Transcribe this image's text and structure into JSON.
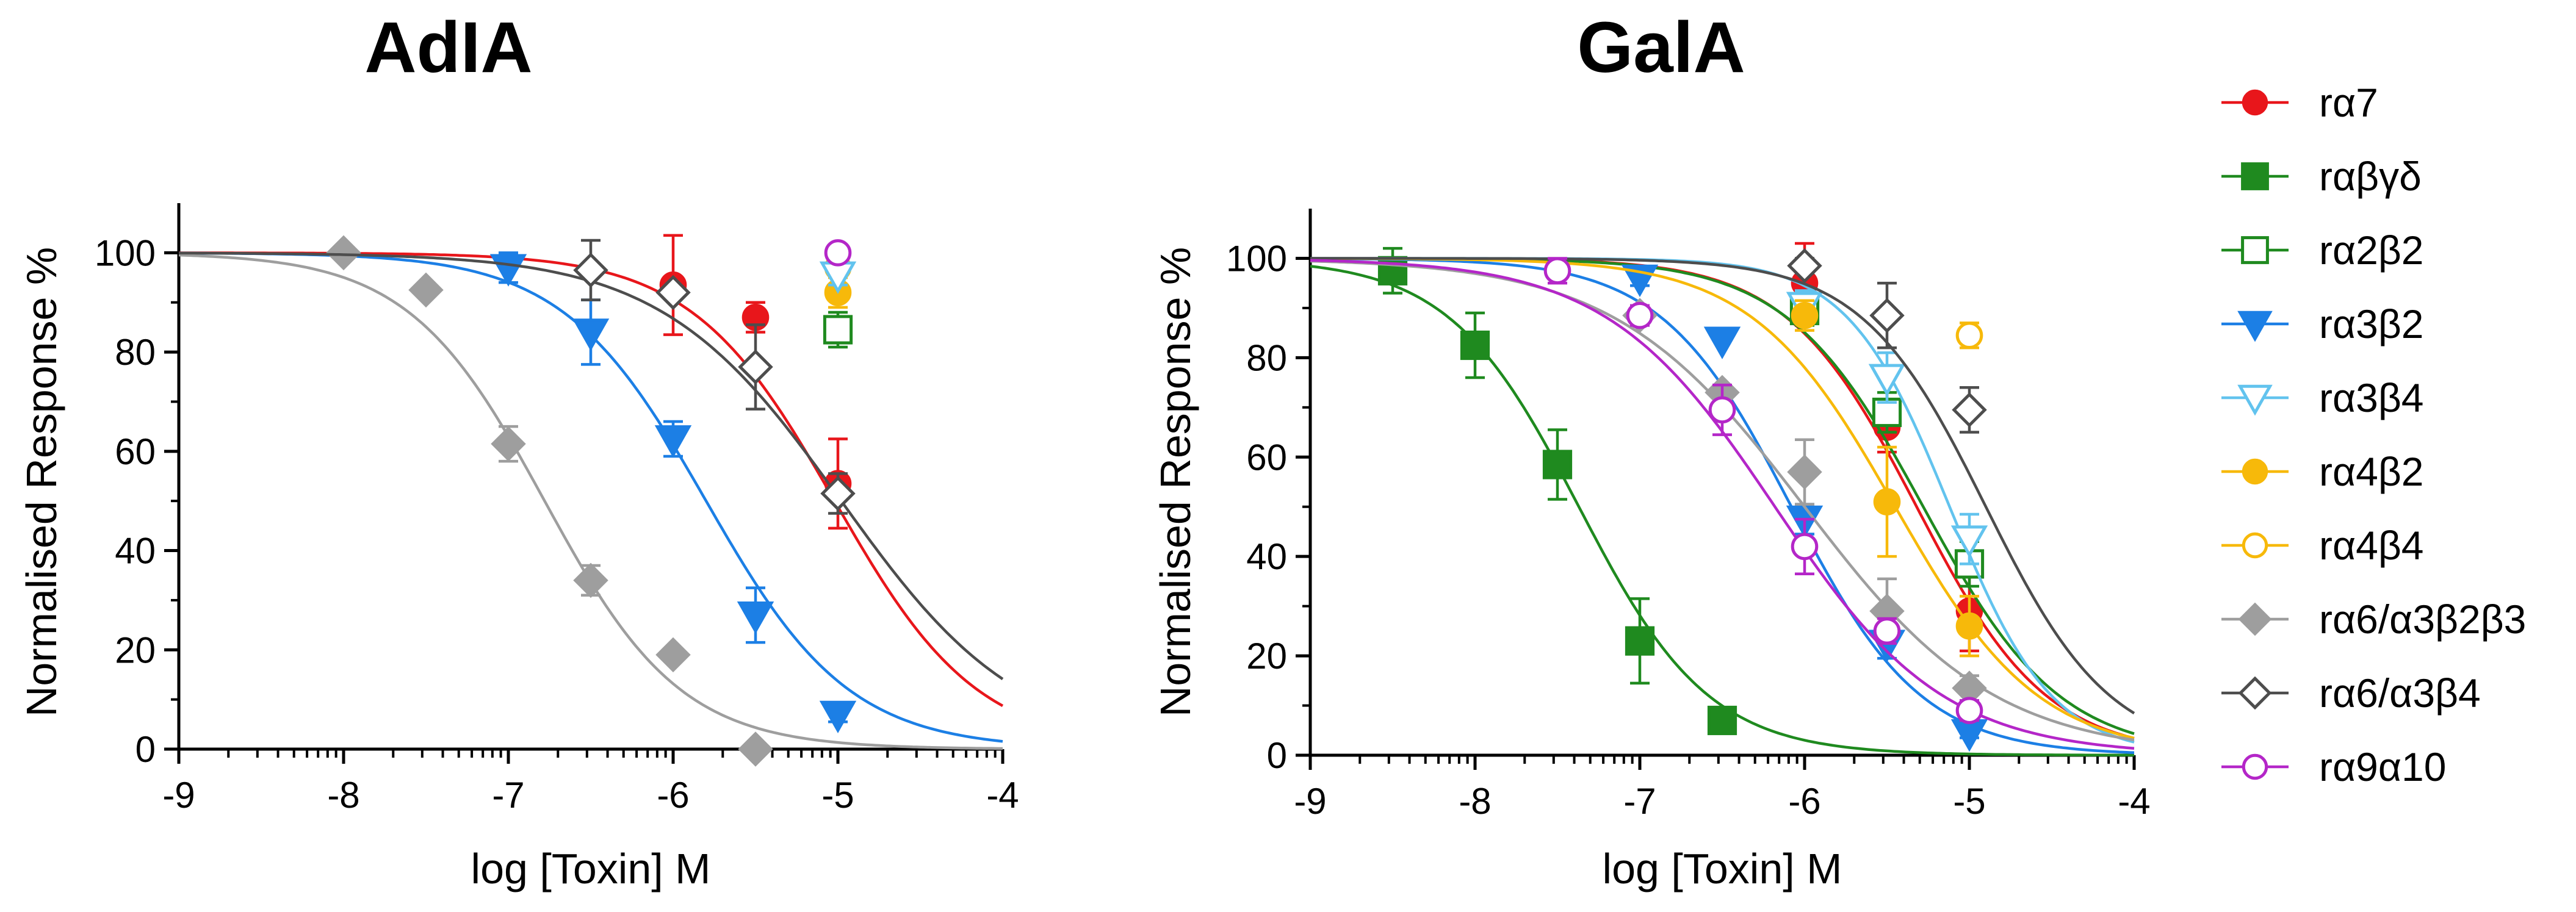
{
  "chart_data": [
    {
      "type": "line",
      "title": "AdIA",
      "xlabel": "log [Toxin] M",
      "ylabel": "Normalised Response %",
      "xlim": [
        -9,
        -4
      ],
      "ylim": [
        0,
        110
      ],
      "xticks": [
        "-9",
        "-8",
        "-7",
        "-6",
        "-5",
        "-4"
      ],
      "yticks": [
        "0",
        "20",
        "40",
        "60",
        "80",
        "100"
      ],
      "grid": false,
      "series": [
        {
          "name": "rα7",
          "color": "#e8161b",
          "marker": "circle",
          "filled": true,
          "x": [
            -6,
            -5.5,
            -5
          ],
          "y": [
            93.5,
            87,
            53.5
          ],
          "err": [
            10,
            3,
            9
          ],
          "curve": {
            "ic50": -5.02,
            "hill": 1.0
          }
        },
        {
          "name": "rα3β2",
          "color": "#1c7fe5",
          "marker": "triangle-down",
          "filled": true,
          "x": [
            -7,
            -6.5,
            -6,
            -5.5,
            -5
          ],
          "y": [
            97,
            84,
            62.5,
            27,
            7
          ],
          "err": [
            3,
            6.5,
            3.5,
            5.5,
            1.5
          ],
          "curve": {
            "ic50": -5.8,
            "hill": 1.0
          }
        },
        {
          "name": "rα6/α3β2β3",
          "color": "#9e9e9e",
          "marker": "diamond",
          "filled": true,
          "x": [
            -8,
            -7.5,
            -7,
            -6.5,
            -6,
            -5.5
          ],
          "y": [
            100,
            92.5,
            61.5,
            34,
            19,
            0
          ],
          "err": [
            0,
            0,
            3.5,
            3,
            0,
            0
          ],
          "curve": {
            "ic50": -6.78,
            "hill": 1.05
          }
        },
        {
          "name": "rα6/α3β4",
          "color": "#4d4d4d",
          "marker": "diamond",
          "filled": false,
          "x": [
            -6.5,
            -6,
            -5.5,
            -5
          ],
          "y": [
            96.5,
            92,
            77,
            51.5
          ],
          "err": [
            6,
            0,
            8.5,
            4
          ],
          "curve": {
            "ic50": -4.98,
            "hill": 0.8
          }
        },
        {
          "name": "rα2β2",
          "color": "#1f8a1f",
          "marker": "square",
          "filled": false,
          "x": [
            -5
          ],
          "y": [
            84.5
          ],
          "err": [
            3.5
          ]
        },
        {
          "name": "rα4β2",
          "color": "#f7b90a",
          "marker": "circle",
          "filled": true,
          "x": [
            -5
          ],
          "y": [
            92
          ],
          "err": [
            3
          ]
        },
        {
          "name": "rα4β4",
          "color": "#f7b90a",
          "marker": "circle",
          "filled": false,
          "x": [
            -5
          ],
          "y": [
            97
          ],
          "err": [
            0
          ]
        },
        {
          "name": "rα3β4",
          "color": "#62c3ee",
          "marker": "triangle-down",
          "filled": false,
          "x": [
            -5
          ],
          "y": [
            95.5
          ],
          "err": [
            2
          ]
        },
        {
          "name": "rα9α10",
          "color": "#b426c8",
          "marker": "circle",
          "filled": false,
          "x": [
            -5
          ],
          "y": [
            100
          ],
          "err": [
            0
          ]
        }
      ]
    },
    {
      "type": "line",
      "title": "GalA",
      "xlabel": "log [Toxin] M",
      "ylabel": "Normalised Response %",
      "xlim": [
        -9,
        -4
      ],
      "ylim": [
        0,
        110
      ],
      "xticks": [
        "-9",
        "-8",
        "-7",
        "-6",
        "-5",
        "-4"
      ],
      "yticks": [
        "0",
        "20",
        "40",
        "60",
        "80",
        "100"
      ],
      "grid": false,
      "series": [
        {
          "name": "rα7",
          "color": "#e8161b",
          "marker": "circle",
          "filled": true,
          "x": [
            -6,
            -5.5,
            -5
          ],
          "y": [
            95,
            66,
            29
          ],
          "err": [
            8,
            5,
            8
          ],
          "curve": {
            "ic50": -5.32,
            "hill": 1.1
          }
        },
        {
          "name": "rαβγδ",
          "color": "#1f8a1f",
          "marker": "square",
          "filled": true,
          "x": [
            -8.5,
            -8,
            -7.5,
            -7,
            -6.5
          ],
          "y": [
            97.5,
            82.5,
            58.5,
            23,
            7
          ],
          "err": [
            4.5,
            6.5,
            7,
            8.5,
            2.5
          ],
          "curve": {
            "ic50": -7.37,
            "hill": 1.1
          }
        },
        {
          "name": "rα2β2",
          "color": "#1f8a1f",
          "marker": "square",
          "filled": false,
          "x": [
            -6,
            -5.5,
            -5
          ],
          "y": [
            89.5,
            69,
            38.5
          ],
          "err": [
            3,
            4,
            4.5
          ],
          "curve": {
            "ic50": -5.28,
            "hill": 1.05
          }
        },
        {
          "name": "rα3β2",
          "color": "#1c7fe5",
          "marker": "triangle-down",
          "filled": true,
          "x": [
            -7,
            -6.5,
            -6,
            -5.5,
            -5
          ],
          "y": [
            96,
            83.5,
            47.5,
            22.5,
            4.5
          ],
          "err": [
            1.5,
            0,
            3,
            3,
            1
          ],
          "curve": {
            "ic50": -6.08,
            "hill": 1.1
          }
        },
        {
          "name": "rα3β4",
          "color": "#62c3ee",
          "marker": "triangle-down",
          "filled": false,
          "x": [
            -6,
            -5.5,
            -5
          ],
          "y": [
            90.5,
            76,
            43.5
          ],
          "err": [
            3,
            5,
            5
          ],
          "curve": {
            "ic50": -5.12,
            "hill": 1.4
          }
        },
        {
          "name": "rα4β2",
          "color": "#f7b90a",
          "marker": "circle",
          "filled": true,
          "x": [
            -6,
            -5.5,
            -5
          ],
          "y": [
            88.5,
            51,
            26
          ],
          "err": [
            3,
            11,
            6
          ],
          "curve": {
            "ic50": -5.45,
            "hill": 1.0
          }
        },
        {
          "name": "rα4β4",
          "color": "#f7b90a",
          "marker": "circle",
          "filled": false,
          "x": [
            -5
          ],
          "y": [
            84.5
          ],
          "err": [
            2.5
          ]
        },
        {
          "name": "rα6/α3β2β3",
          "color": "#9e9e9e",
          "marker": "diamond",
          "filled": true,
          "x": [
            -7,
            -6.5,
            -6,
            -5.5,
            -5
          ],
          "y": [
            88.5,
            73,
            57,
            29,
            13.5
          ],
          "err": [
            2,
            0,
            6.5,
            6.5,
            2.5
          ],
          "curve": {
            "ic50": -6.0,
            "hill": 0.75
          }
        },
        {
          "name": "rα6/α3β4",
          "color": "#4d4d4d",
          "marker": "diamond",
          "filled": false,
          "x": [
            -6,
            -5.5,
            -5
          ],
          "y": [
            98.5,
            88.5,
            69.5
          ],
          "err": [
            1.5,
            6.5,
            4.5
          ],
          "curve": {
            "ic50": -4.9,
            "hill": 1.15
          }
        },
        {
          "name": "rα9α10",
          "color": "#b426c8",
          "marker": "circle",
          "filled": false,
          "x": [
            -7.5,
            -7,
            -6.5,
            -6,
            -5.5,
            -5
          ],
          "y": [
            97.5,
            88.5,
            69.5,
            42,
            25,
            9
          ],
          "err": [
            2.5,
            2,
            5,
            5.5,
            2.5,
            2
          ],
          "curve": {
            "ic50": -6.18,
            "hill": 0.85
          }
        }
      ]
    }
  ],
  "legend": {
    "position": "right",
    "items": [
      {
        "name": "rα7",
        "color": "#e8161b",
        "marker": "circle",
        "filled": true
      },
      {
        "name": "rαβγδ",
        "color": "#1f8a1f",
        "marker": "square",
        "filled": true
      },
      {
        "name": "rα2β2",
        "color": "#1f8a1f",
        "marker": "square",
        "filled": false
      },
      {
        "name": "rα3β2",
        "color": "#1c7fe5",
        "marker": "triangle-down",
        "filled": true
      },
      {
        "name": "rα3β4",
        "color": "#62c3ee",
        "marker": "triangle-down",
        "filled": false
      },
      {
        "name": "rα4β2",
        "color": "#f7b90a",
        "marker": "circle",
        "filled": true
      },
      {
        "name": "rα4β4",
        "color": "#f7b90a",
        "marker": "circle",
        "filled": false
      },
      {
        "name": "rα6/α3β2β3",
        "color": "#9e9e9e",
        "marker": "diamond",
        "filled": true
      },
      {
        "name": "rα6/α3β4",
        "color": "#4d4d4d",
        "marker": "diamond",
        "filled": false
      },
      {
        "name": "rα9α10",
        "color": "#b426c8",
        "marker": "circle",
        "filled": false
      }
    ]
  }
}
